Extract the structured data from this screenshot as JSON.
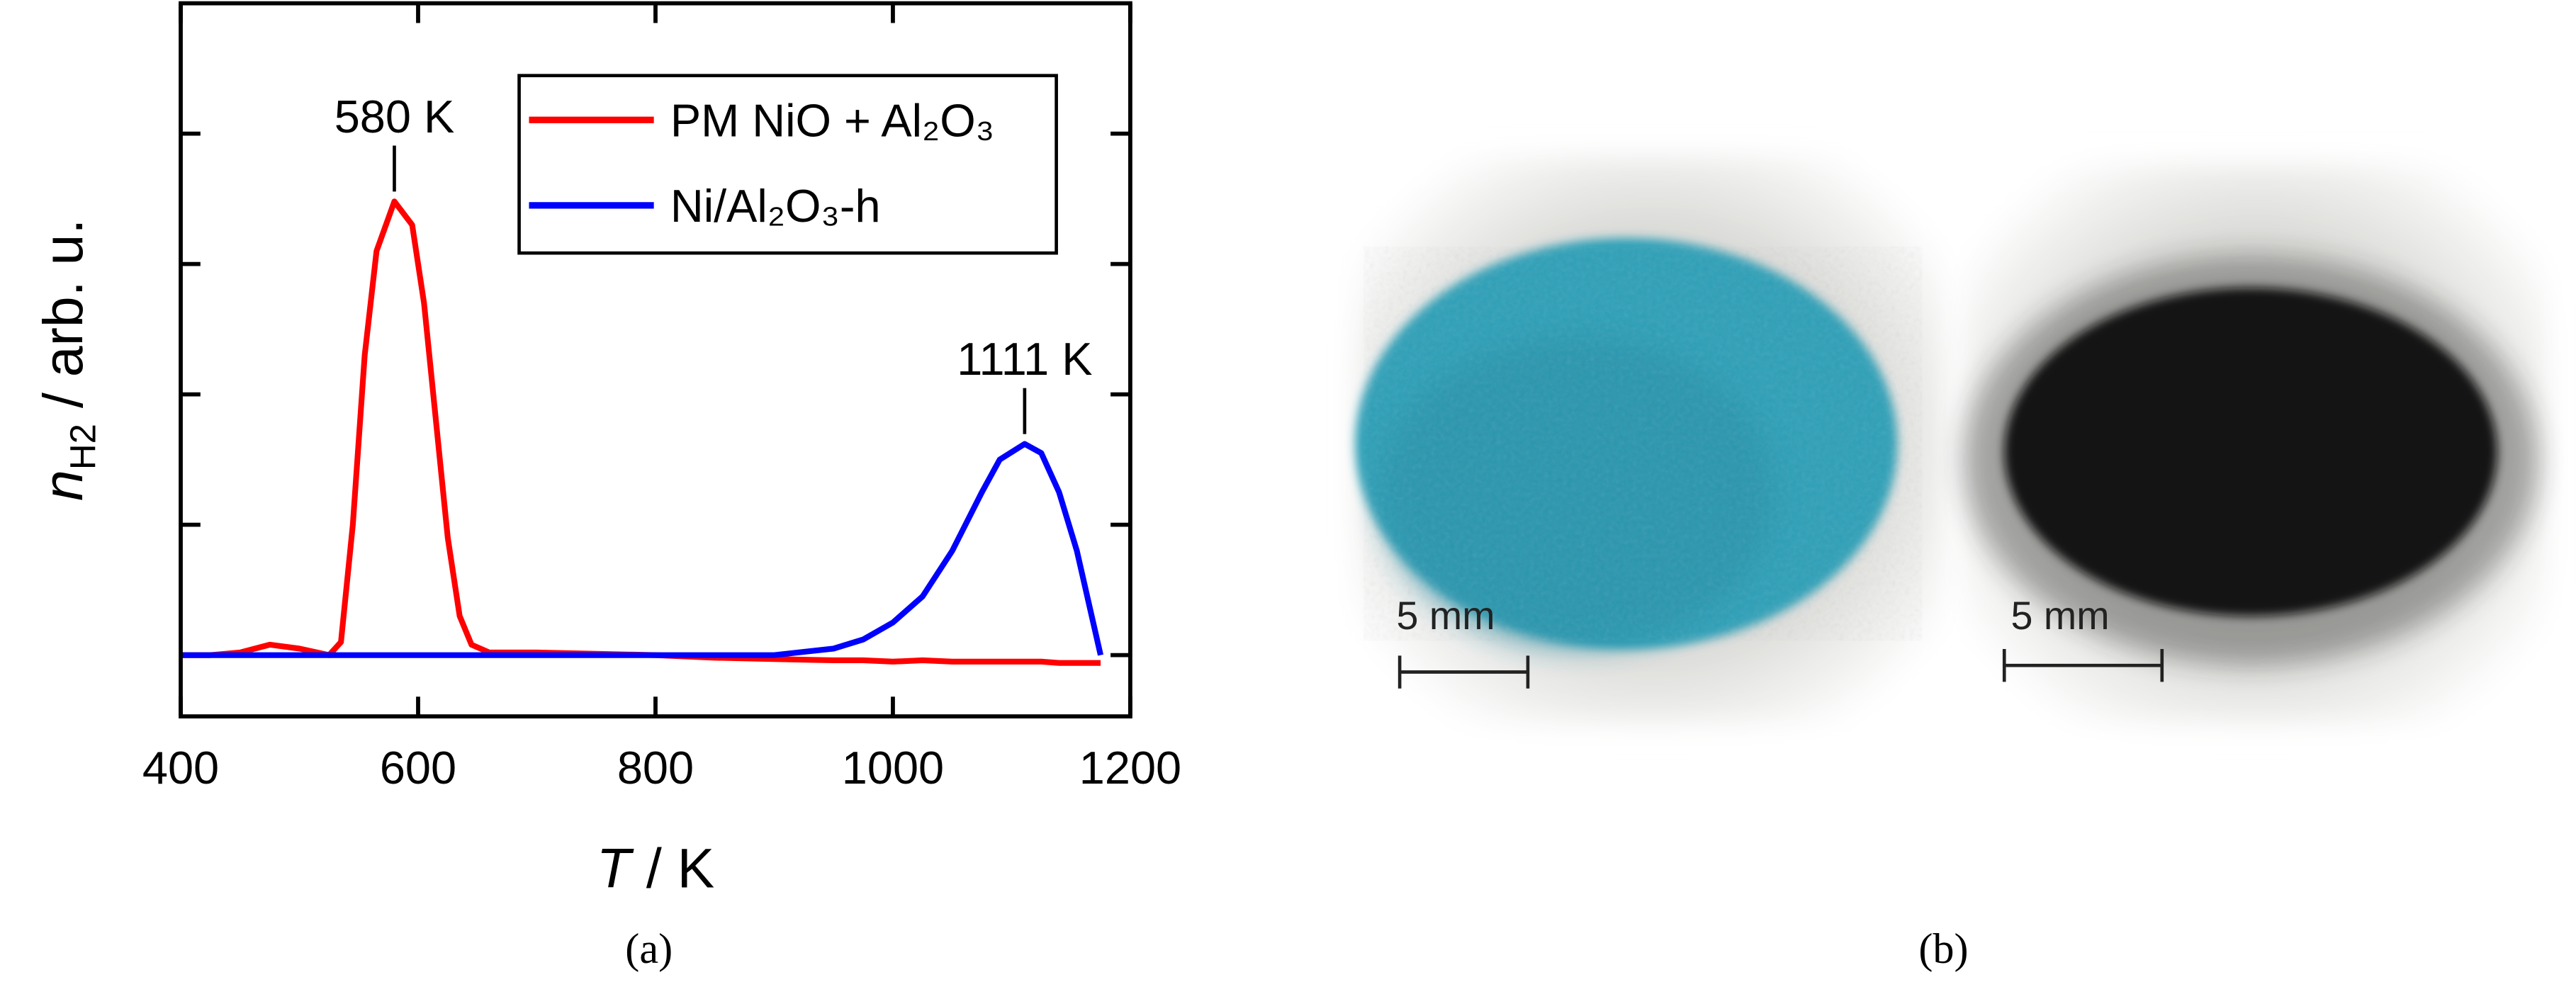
{
  "chart_data": {
    "type": "line",
    "panel_label": "(a)",
    "xlabel": {
      "symbol": "T",
      "text": " / K"
    },
    "ylabel": {
      "symbol": "n",
      "subscript": "H2",
      "text": " / arb. u."
    },
    "x": [
      400,
      425,
      450,
      475,
      500,
      525,
      535,
      545,
      555,
      565,
      580,
      595,
      605,
      615,
      625,
      635,
      645,
      660,
      700,
      750,
      800,
      850,
      900,
      950,
      975,
      1000,
      1025,
      1050,
      1075,
      1090,
      1111,
      1125,
      1140,
      1155,
      1165,
      1175
    ],
    "series": [
      {
        "name": "PM NiO + Al₂O₃",
        "color": "#ff0000",
        "values": [
          0,
          0,
          0.02,
          0.08,
          0.05,
          0,
          0.1,
          1.0,
          2.3,
          3.1,
          3.48,
          3.3,
          2.7,
          1.8,
          0.9,
          0.3,
          0.08,
          0.02,
          0.02,
          0.01,
          0,
          -0.02,
          -0.03,
          -0.04,
          -0.04,
          -0.05,
          -0.04,
          -0.05,
          -0.05,
          -0.05,
          -0.05,
          -0.05,
          -0.06,
          -0.06,
          -0.06,
          -0.06
        ]
      },
      {
        "name": "Ni/Al₂O₃-h",
        "color": "#0000ff",
        "values": [
          0,
          0,
          0,
          0,
          0,
          0,
          0,
          0,
          0,
          0,
          0,
          0,
          0,
          0,
          0,
          0,
          0,
          0,
          0,
          0,
          0,
          0,
          0,
          0.05,
          0.12,
          0.25,
          0.45,
          0.8,
          1.25,
          1.5,
          1.62,
          1.55,
          1.25,
          0.8,
          0.4,
          0
        ]
      }
    ],
    "annotations": [
      {
        "text": "580 K",
        "x": 580,
        "y": 3.48
      },
      {
        "text": "1111 K",
        "x": 1111,
        "y": 1.62
      }
    ],
    "xlim": [
      400,
      1200
    ],
    "xticks": [
      400,
      600,
      800,
      1000,
      1200
    ],
    "ylim": [
      -0.47,
      5
    ],
    "yticks": [
      0,
      1,
      2,
      3,
      4
    ],
    "ytick_labels": false,
    "legend": "upper right"
  },
  "figure_b": {
    "panel_label": "(b)",
    "scale_bars": [
      "5 mm",
      "5 mm"
    ]
  }
}
